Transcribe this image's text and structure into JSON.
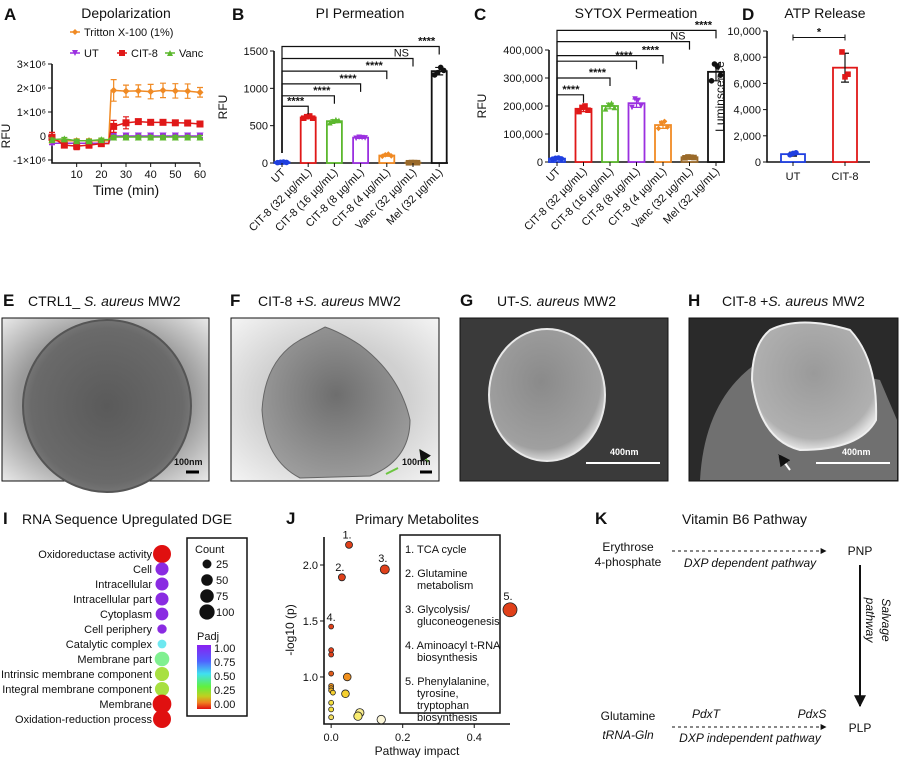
{
  "panels": {
    "A": "A",
    "B": "B",
    "C": "C",
    "D": "D",
    "E": "E",
    "F": "F",
    "G": "G",
    "H": "H",
    "I": "I",
    "J": "J",
    "K": "K"
  },
  "chart_data": [
    {
      "id": "A",
      "type": "line",
      "title": "Depolarization",
      "xlabel": "Time (min)",
      "ylabel": "RFU",
      "xlim": [
        0,
        60
      ],
      "ylim": [
        -1000000,
        3000000
      ],
      "xticks": [
        10,
        20,
        30,
        40,
        50,
        60
      ],
      "yticks": [
        -1000000,
        0,
        1000000,
        2000000,
        3000000
      ],
      "ytick_labels": [
        "-1×10⁶",
        "0",
        "1×10⁶",
        "2×10⁶",
        "3×10⁶"
      ],
      "x": [
        0,
        5,
        10,
        15,
        20,
        25,
        30,
        35,
        40,
        45,
        50,
        55,
        60
      ],
      "series": [
        {
          "name": "Tritton X-100 (1%)",
          "color": "#f08a24",
          "marker": "diamond",
          "values": [
            -200000,
            -200000,
            -200000,
            -200000,
            -200000,
            1900000,
            1870000,
            1880000,
            1850000,
            1900000,
            1880000,
            1870000,
            1820000
          ],
          "err": [
            100000,
            80000,
            80000,
            80000,
            80000,
            450000,
            250000,
            250000,
            300000,
            300000,
            300000,
            300000,
            200000
          ]
        },
        {
          "name": "UT",
          "color": "#9b30e0",
          "marker": "triangle-down",
          "values": [
            -300000,
            -300000,
            -300000,
            -300000,
            -300000,
            0,
            0,
            0,
            0,
            0,
            0,
            0,
            0
          ],
          "err": [
            60000,
            60000,
            60000,
            60000,
            60000,
            60000,
            60000,
            60000,
            60000,
            60000,
            60000,
            60000,
            60000
          ]
        },
        {
          "name": "CIT-8",
          "color": "#e01818",
          "marker": "square",
          "values": [
            -50000,
            -380000,
            -420000,
            -380000,
            -320000,
            400000,
            550000,
            600000,
            570000,
            570000,
            550000,
            540000,
            500000
          ],
          "err": [
            200000,
            100000,
            150000,
            120000,
            80000,
            250000,
            250000,
            100000,
            80000,
            80000,
            80000,
            80000,
            80000
          ]
        },
        {
          "name": "Vanc",
          "color": "#5cb82e",
          "marker": "triangle-up",
          "values": [
            -150000,
            -120000,
            -200000,
            -200000,
            -150000,
            -40000,
            -40000,
            -40000,
            -40000,
            -40000,
            -40000,
            -40000,
            -40000
          ],
          "err": [
            60000,
            60000,
            60000,
            60000,
            60000,
            60000,
            60000,
            60000,
            60000,
            60000,
            60000,
            60000,
            60000
          ]
        }
      ]
    },
    {
      "id": "B",
      "type": "bar",
      "title": "PI Permeation",
      "ylabel": "RFU",
      "ylim": [
        0,
        1500
      ],
      "yticks": [
        0,
        500,
        1000,
        1500
      ],
      "ytick_labels": [
        "0",
        "500",
        "1000",
        "1500"
      ],
      "categories": [
        "UT",
        "CIT-8 (32 µg/mL)",
        "CIT-8 (16 µg/mL)",
        "CIT-8 (8 µg/mL)",
        "CIT-8 (4 µg/mL)",
        "Vanc (32 µg/mL)",
        "Mel (32 µg/mL)"
      ],
      "values": [
        10,
        610,
        560,
        340,
        100,
        5,
        1230
      ],
      "points": [
        [
          5,
          10,
          12,
          8
        ],
        [
          600,
          620,
          630,
          600
        ],
        [
          540,
          560,
          580,
          570
        ],
        [
          330,
          345,
          340,
          335
        ],
        [
          90,
          110,
          120,
          95
        ],
        [
          3,
          6,
          5,
          4
        ],
        [
          1180,
          1210,
          1280,
          1240
        ]
      ],
      "colors": [
        "#1f3fe0",
        "#e01818",
        "#5cb82e",
        "#9b30e0",
        "#f08a24",
        "#9a6a2a",
        "#111111"
      ],
      "significance": [
        {
          "to": 1,
          "label": "****",
          "y": 760
        },
        {
          "to": 2,
          "label": "****",
          "y": 900
        },
        {
          "to": 3,
          "label": "****",
          "y": 1060
        },
        {
          "to": 4,
          "label": "****",
          "y": 1230
        },
        {
          "to": 5,
          "label": "NS",
          "y": 1400
        },
        {
          "to": 6,
          "label": "****",
          "y": 1560
        }
      ]
    },
    {
      "id": "C",
      "type": "bar",
      "title": "SYTOX Permeation",
      "ylabel": "RFU",
      "ylim": [
        0,
        400000
      ],
      "yticks": [
        0,
        100000,
        200000,
        300000,
        400000
      ],
      "ytick_labels": [
        "0",
        "100,000",
        "200,000",
        "300,000",
        "400,000"
      ],
      "categories": [
        "UT",
        "CIT-8 (32 µg/mL)",
        "CIT-8 (16 µg/mL)",
        "CIT-8 (8 µg/mL)",
        "CIT-8 (4 µg/mL)",
        "Vanc (32 µg/mL)",
        "Mel (32 µg/mL)"
      ],
      "values": [
        12000,
        190000,
        200000,
        210000,
        132000,
        17000,
        322000
      ],
      "points": [
        [
          10000,
          13000,
          14000,
          11000
        ],
        [
          180000,
          195000,
          200000,
          185000
        ],
        [
          190000,
          205000,
          210000,
          195000
        ],
        [
          195000,
          225000,
          220000,
          200000
        ],
        [
          120000,
          140000,
          145000,
          125000
        ],
        [
          15000,
          18000,
          17000,
          16000
        ],
        [
          290000,
          350000,
          340000,
          310000
        ]
      ],
      "colors": [
        "#1f3fe0",
        "#e01818",
        "#5cb82e",
        "#9b30e0",
        "#f08a24",
        "#9a6a2a",
        "#111111"
      ],
      "significance": [
        {
          "to": 1,
          "label": "****",
          "y": 240000
        },
        {
          "to": 2,
          "label": "****",
          "y": 300000
        },
        {
          "to": 3,
          "label": "****",
          "y": 360000
        },
        {
          "to": 4,
          "label": "****",
          "y": 380000
        },
        {
          "to": 5,
          "label": "NS",
          "y": 430000
        },
        {
          "to": 6,
          "label": "****",
          "y": 470000
        }
      ]
    },
    {
      "id": "D",
      "type": "bar",
      "title": "ATP Release",
      "ylabel": "Luminscence",
      "ylim": [
        0,
        10000
      ],
      "yticks": [
        0,
        2000,
        4000,
        6000,
        8000,
        10000
      ],
      "ytick_labels": [
        "0",
        "2,000",
        "4,000",
        "6,000",
        "8,000",
        "10,000"
      ],
      "categories": [
        "UT",
        "CIT-8"
      ],
      "values": [
        600,
        7200
      ],
      "points": [
        [
          550,
          650,
          700
        ],
        [
          8400,
          6500,
          6700
        ]
      ],
      "err": [
        150,
        1100
      ],
      "colors": [
        "#1f3fe0",
        "#e01818"
      ],
      "significance": [
        {
          "from": 0,
          "to": 1,
          "label": "*",
          "y": 9500
        }
      ]
    },
    {
      "id": "I",
      "type": "scatter",
      "title": "RNA Sequence Upregulated DGE",
      "categories": [
        "Oxidoreductase activity",
        "Cell",
        "Intracellular",
        "Intracellular part",
        "Cytoplasm",
        "Cell periphery",
        "Catalytic complex",
        "Membrane part",
        "Intrinsic membrane component",
        "Integral membrane component",
        "Membrane",
        "Oxidation-reduction process"
      ],
      "count": [
        100,
        45,
        45,
        45,
        42,
        18,
        15,
        60,
        55,
        55,
        110,
        100
      ],
      "padj": [
        0.0,
        0.95,
        0.95,
        0.95,
        0.95,
        0.95,
        0.6,
        0.4,
        0.3,
        0.3,
        0.0,
        0.0
      ],
      "legend": {
        "count_title": "Count",
        "count_values": [
          25,
          50,
          75,
          100
        ],
        "padj_title": "Padj",
        "padj_ticks": [
          "1.00",
          "0.75",
          "0.50",
          "0.25",
          "0.00"
        ]
      }
    },
    {
      "id": "J",
      "type": "scatter",
      "title": "Primary Metabolites",
      "xlabel": "Pathway impact",
      "ylabel": "-log10 (p)",
      "xlim": [
        -0.02,
        0.5
      ],
      "ylim": [
        0.58,
        2.25
      ],
      "xticks": [
        0.0,
        0.2,
        0.4
      ],
      "xtick_labels": [
        "0.0",
        "0.2",
        "0.4"
      ],
      "yticks": [
        1.0,
        1.5,
        2.0
      ],
      "ytick_labels": [
        "1.0",
        "1.5",
        "2.0"
      ],
      "points": [
        {
          "x": 0.05,
          "y": 2.18,
          "label": "1.",
          "color": "#e0401a",
          "size": 1
        },
        {
          "x": 0.03,
          "y": 1.89,
          "label": "2.",
          "color": "#e0401a",
          "size": 1
        },
        {
          "x": 0.15,
          "y": 1.96,
          "label": "3.",
          "color": "#e0401a",
          "size": 1.3
        },
        {
          "x": 0.0,
          "y": 1.45,
          "label": "4.",
          "color": "#e0401a",
          "size": 0.7
        },
        {
          "x": 0.5,
          "y": 1.6,
          "label": "5.",
          "color": "#e0401a",
          "size": 2
        },
        {
          "x": 0.0,
          "y": 1.24,
          "color": "#e0401a",
          "size": 0.7
        },
        {
          "x": 0.0,
          "y": 1.2,
          "color": "#e0401a",
          "size": 0.7
        },
        {
          "x": 0.0,
          "y": 1.03,
          "color": "#e05a1a",
          "size": 0.7
        },
        {
          "x": 0.045,
          "y": 1.0,
          "color": "#f0901e",
          "size": 1.1
        },
        {
          "x": 0.0,
          "y": 0.92,
          "color": "#f09020",
          "size": 0.7
        },
        {
          "x": 0.0,
          "y": 0.9,
          "color": "#f0a020",
          "size": 0.7
        },
        {
          "x": 0.0,
          "y": 0.88,
          "color": "#f0b020",
          "size": 0.7
        },
        {
          "x": 0.005,
          "y": 0.86,
          "color": "#f5d030",
          "size": 0.7
        },
        {
          "x": 0.04,
          "y": 0.85,
          "color": "#f5d030",
          "size": 1.1
        },
        {
          "x": 0.0,
          "y": 0.77,
          "color": "#f5e040",
          "size": 0.7
        },
        {
          "x": 0.0,
          "y": 0.71,
          "color": "#f5e040",
          "size": 0.7
        },
        {
          "x": 0.0,
          "y": 0.64,
          "color": "#f5e060",
          "size": 0.7
        },
        {
          "x": 0.08,
          "y": 0.68,
          "color": "#f8ec90",
          "size": 1.2
        },
        {
          "x": 0.075,
          "y": 0.65,
          "color": "#f8ec70",
          "size": 1.2
        },
        {
          "x": 0.14,
          "y": 0.62,
          "color": "#fbf6d8",
          "size": 1.2
        }
      ],
      "legend": [
        "1. TCA cycle",
        "2. Glutamine|metabolism",
        "3. Glycolysis/|gluconeogenesis",
        "4. Aminoacyl t-RNA|biosynthesis",
        "5. Phenylalanine,|tyrosine,|tryptophan|biosynthesis"
      ]
    }
  ],
  "images": {
    "E": {
      "title": "CTRL1_ ",
      "organism": "S. aureus",
      "strain": " MW2",
      "scale": "100nm"
    },
    "F": {
      "title": "CIT-8 +",
      "organism": "S. aureus",
      "strain": " MW2",
      "scale": "100nm"
    },
    "G": {
      "title": "UT-",
      "organism": "S. aureus",
      "strain": " MW2",
      "scale": "400nm"
    },
    "H": {
      "title": "CIT-8 +",
      "organism": "S. aureus",
      "strain": " MW2",
      "scale": "400nm"
    }
  },
  "pathway": {
    "title": "Vitamin B6 Pathway",
    "erythrose": "Erythrose",
    "erythrose2": "4-phosphate",
    "dxp_dep": "DXP dependent pathway",
    "pnp": "PNP",
    "salvage1": "Salvage",
    "salvage2": "pathway",
    "glutamine": "Glutamine",
    "trna": "tRNA-Gln",
    "pdxt": "PdxT",
    "pdxs": "PdxS",
    "dxp_indep": "DXP independent pathway",
    "plp": "PLP"
  }
}
